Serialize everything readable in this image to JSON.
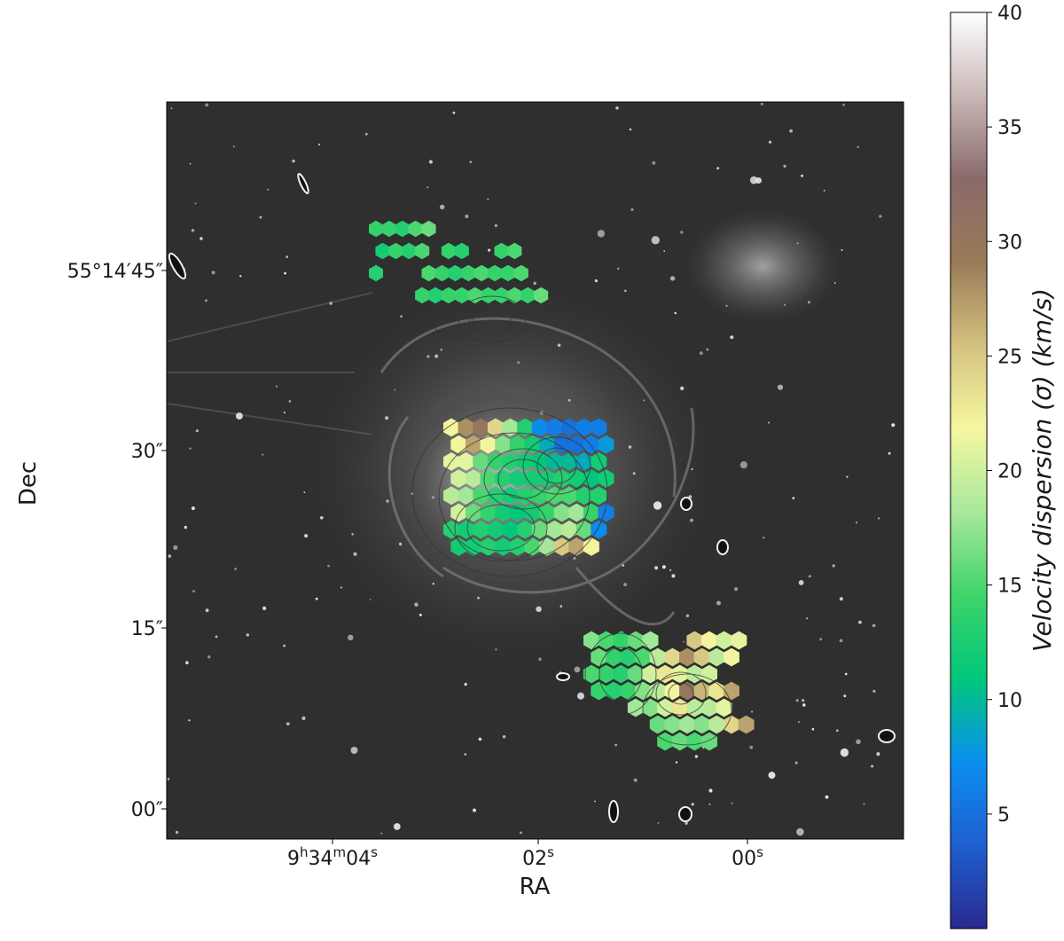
{
  "chart_data": {
    "type": "heatmap",
    "title": "",
    "xlabel": "RA",
    "ylabel": "Dec",
    "x_ticks": [
      {
        "label": "9h34m04s",
        "parts": [
          "9",
          "h",
          "34",
          "m",
          "04",
          "s"
        ]
      },
      {
        "label": "02s",
        "parts": [
          "02",
          "s"
        ]
      },
      {
        "label": "00s",
        "parts": [
          "00",
          "s"
        ]
      }
    ],
    "y_ticks": [
      "55°14′45″",
      "30″",
      "15″",
      "00″"
    ],
    "colorbar": {
      "label": "Velocity dispersion (σ) (km/s)",
      "range": [
        0,
        40
      ],
      "ticks": [
        "5",
        "10",
        "15",
        "20",
        "25",
        "30",
        "35",
        "40"
      ],
      "tick_values": [
        5,
        10,
        15,
        20,
        25,
        30,
        35,
        40
      ],
      "colors": [
        "#2a2a8f",
        "#1e5fd0",
        "#0b8ff0",
        "#00c77a",
        "#3ed46a",
        "#a8e89a",
        "#f6f7a0",
        "#d3c27f",
        "#9a7a57",
        "#8a6a6a",
        "#c9b7b7",
        "#ffffff"
      ]
    },
    "regions": [
      {
        "name": "north",
        "cells": [
          [
            0,
            0,
            14
          ],
          [
            1,
            0,
            14
          ],
          [
            2,
            0,
            13
          ],
          [
            3,
            0,
            15
          ],
          [
            4,
            0,
            16
          ],
          [
            0,
            1,
            12
          ],
          [
            1,
            1,
            14
          ],
          [
            2,
            1,
            13
          ],
          [
            3,
            1,
            15
          ],
          [
            5,
            1,
            14
          ],
          [
            6,
            1,
            13
          ],
          [
            9,
            1,
            14
          ],
          [
            10,
            1,
            15
          ],
          [
            0,
            2,
            13
          ],
          [
            4,
            2,
            15
          ],
          [
            5,
            2,
            14
          ],
          [
            6,
            2,
            13
          ],
          [
            7,
            2,
            14
          ],
          [
            8,
            2,
            15
          ],
          [
            9,
            2,
            14
          ],
          [
            10,
            2,
            14
          ],
          [
            11,
            2,
            15
          ],
          [
            3,
            3,
            14
          ],
          [
            4,
            3,
            13
          ],
          [
            5,
            3,
            14
          ],
          [
            6,
            3,
            14
          ],
          [
            7,
            3,
            15
          ],
          [
            8,
            3,
            14
          ],
          [
            9,
            3,
            14
          ],
          [
            10,
            3,
            15
          ],
          [
            11,
            3,
            14
          ],
          [
            12,
            3,
            16
          ]
        ]
      },
      {
        "name": "central",
        "cells": [
          [
            0,
            0,
            22
          ],
          [
            1,
            0,
            28
          ],
          [
            2,
            0,
            30
          ],
          [
            3,
            0,
            24
          ],
          [
            4,
            0,
            18
          ],
          [
            5,
            0,
            13
          ],
          [
            6,
            0,
            7
          ],
          [
            7,
            0,
            6
          ],
          [
            8,
            0,
            5
          ],
          [
            9,
            0,
            6
          ],
          [
            10,
            0,
            6
          ],
          [
            0,
            1,
            22
          ],
          [
            1,
            1,
            27
          ],
          [
            2,
            1,
            22
          ],
          [
            3,
            1,
            17
          ],
          [
            4,
            1,
            14
          ],
          [
            5,
            1,
            12
          ],
          [
            6,
            1,
            9
          ],
          [
            7,
            1,
            5
          ],
          [
            8,
            1,
            5
          ],
          [
            9,
            1,
            6
          ],
          [
            10,
            1,
            8
          ],
          [
            0,
            2,
            21
          ],
          [
            1,
            2,
            21
          ],
          [
            2,
            2,
            16
          ],
          [
            3,
            2,
            14
          ],
          [
            4,
            2,
            13
          ],
          [
            5,
            2,
            12
          ],
          [
            6,
            2,
            11
          ],
          [
            7,
            2,
            10
          ],
          [
            8,
            2,
            10
          ],
          [
            9,
            2,
            9
          ],
          [
            10,
            2,
            12
          ],
          [
            0,
            3,
            20
          ],
          [
            1,
            3,
            19
          ],
          [
            2,
            3,
            15
          ],
          [
            3,
            3,
            13
          ],
          [
            4,
            3,
            12
          ],
          [
            5,
            3,
            12
          ],
          [
            6,
            3,
            12
          ],
          [
            7,
            3,
            13
          ],
          [
            8,
            3,
            12
          ],
          [
            9,
            3,
            11
          ],
          [
            10,
            3,
            12
          ],
          [
            0,
            4,
            19
          ],
          [
            1,
            4,
            18
          ],
          [
            2,
            4,
            15
          ],
          [
            3,
            4,
            13
          ],
          [
            4,
            4,
            12
          ],
          [
            5,
            4,
            13
          ],
          [
            6,
            4,
            14
          ],
          [
            7,
            4,
            15
          ],
          [
            8,
            4,
            15
          ],
          [
            9,
            4,
            13
          ],
          [
            10,
            4,
            13
          ],
          [
            0,
            5,
            20
          ],
          [
            1,
            5,
            16
          ],
          [
            2,
            5,
            14
          ],
          [
            3,
            5,
            12
          ],
          [
            4,
            5,
            11
          ],
          [
            5,
            5,
            12
          ],
          [
            6,
            5,
            14
          ],
          [
            7,
            5,
            17
          ],
          [
            8,
            5,
            18
          ],
          [
            9,
            5,
            14
          ],
          [
            10,
            5,
            6
          ],
          [
            0,
            6,
            13
          ],
          [
            1,
            6,
            12
          ],
          [
            2,
            6,
            13
          ],
          [
            3,
            6,
            12
          ],
          [
            4,
            6,
            11
          ],
          [
            5,
            6,
            13
          ],
          [
            6,
            6,
            16
          ],
          [
            7,
            6,
            18
          ],
          [
            8,
            6,
            19
          ],
          [
            9,
            6,
            16
          ],
          [
            10,
            6,
            7
          ],
          [
            0,
            7,
            12
          ],
          [
            1,
            7,
            12
          ],
          [
            2,
            7,
            13
          ],
          [
            3,
            7,
            12
          ],
          [
            4,
            7,
            13
          ],
          [
            5,
            7,
            15
          ],
          [
            6,
            7,
            18
          ],
          [
            7,
            7,
            25
          ],
          [
            8,
            7,
            27
          ],
          [
            9,
            7,
            22
          ]
        ]
      },
      {
        "name": "south",
        "cells": [
          [
            0,
            0,
            17
          ],
          [
            1,
            0,
            15
          ],
          [
            2,
            0,
            14
          ],
          [
            3,
            0,
            16
          ],
          [
            4,
            0,
            18
          ],
          [
            7,
            0,
            25
          ],
          [
            8,
            0,
            22
          ],
          [
            9,
            0,
            20
          ],
          [
            10,
            0,
            21
          ],
          [
            0,
            1,
            16
          ],
          [
            1,
            1,
            14
          ],
          [
            2,
            1,
            13
          ],
          [
            3,
            1,
            15
          ],
          [
            4,
            1,
            19
          ],
          [
            5,
            1,
            24
          ],
          [
            6,
            1,
            28
          ],
          [
            7,
            1,
            25
          ],
          [
            8,
            1,
            19
          ],
          [
            9,
            1,
            22
          ],
          [
            0,
            2,
            15
          ],
          [
            1,
            2,
            14
          ],
          [
            2,
            2,
            13
          ],
          [
            3,
            2,
            16
          ],
          [
            4,
            2,
            20
          ],
          [
            5,
            2,
            23
          ],
          [
            6,
            2,
            21
          ],
          [
            7,
            2,
            19
          ],
          [
            8,
            2,
            20
          ],
          [
            0,
            3,
            14
          ],
          [
            1,
            3,
            13
          ],
          [
            2,
            3,
            14
          ],
          [
            3,
            3,
            17
          ],
          [
            4,
            3,
            19
          ],
          [
            5,
            3,
            22
          ],
          [
            6,
            3,
            30
          ],
          [
            7,
            3,
            26
          ],
          [
            8,
            3,
            23
          ],
          [
            9,
            3,
            27
          ],
          [
            3,
            4,
            18
          ],
          [
            4,
            4,
            17
          ],
          [
            5,
            4,
            20
          ],
          [
            6,
            4,
            23
          ],
          [
            7,
            4,
            19
          ],
          [
            8,
            4,
            19
          ],
          [
            9,
            4,
            21
          ],
          [
            4,
            5,
            16
          ],
          [
            5,
            5,
            17
          ],
          [
            6,
            5,
            18
          ],
          [
            7,
            5,
            17
          ],
          [
            8,
            5,
            19
          ],
          [
            9,
            5,
            24
          ],
          [
            10,
            5,
            27
          ],
          [
            5,
            6,
            15
          ],
          [
            6,
            6,
            16
          ],
          [
            7,
            6,
            15
          ],
          [
            8,
            6,
            16
          ]
        ]
      }
    ]
  }
}
